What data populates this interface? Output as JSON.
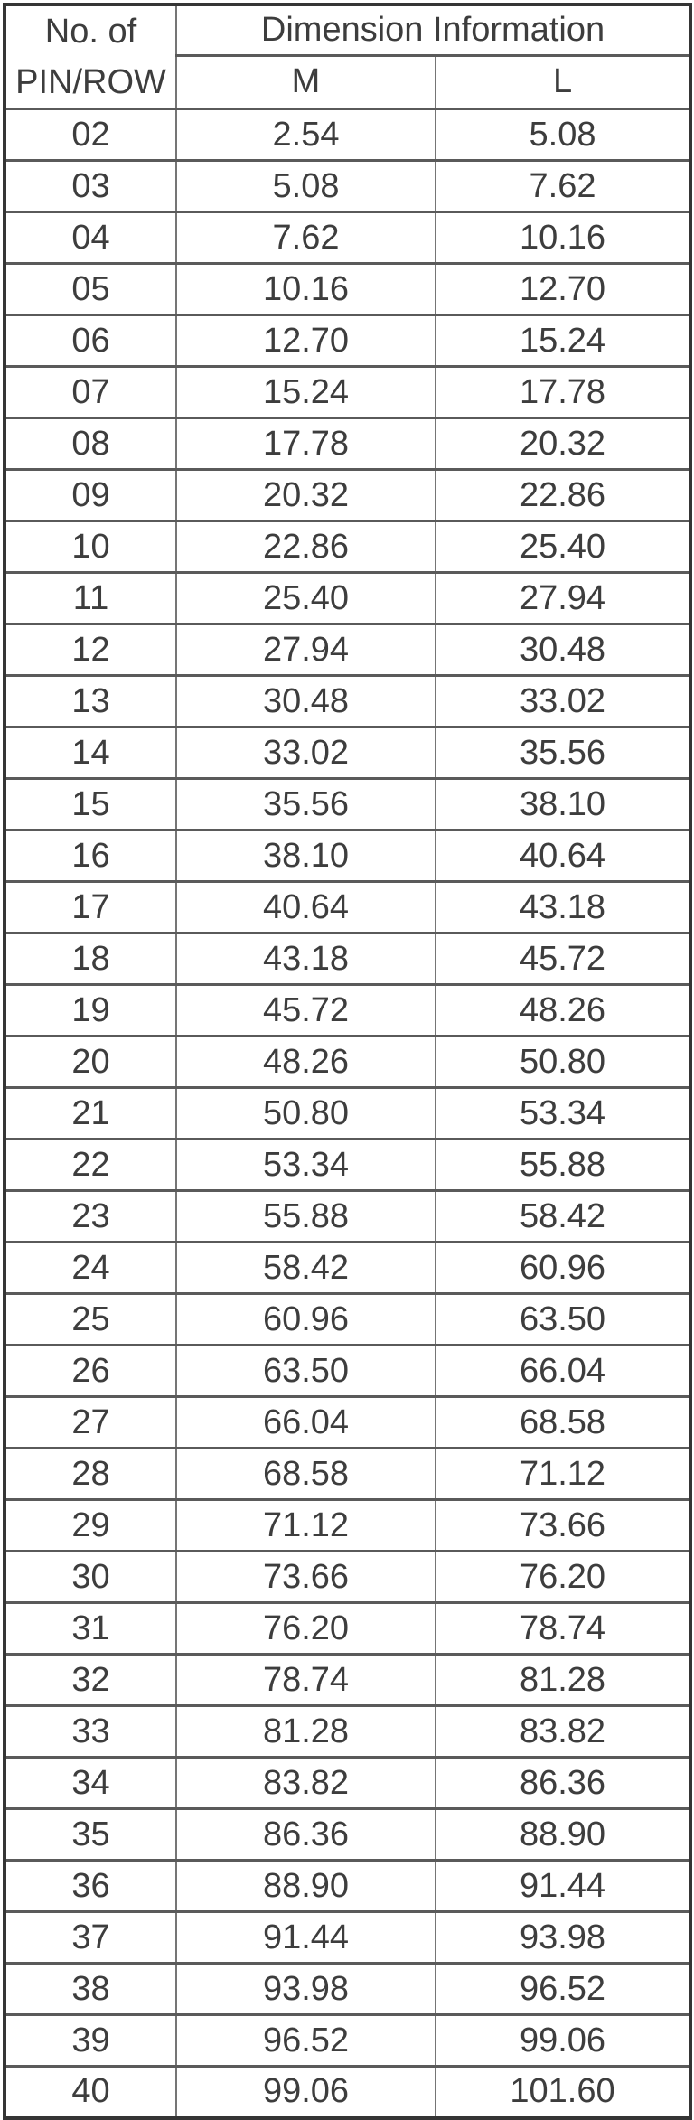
{
  "colors": {
    "text": "#3d3d3d",
    "border_outer": "#353535",
    "border_inner_horizontal": "#5a5a5a",
    "border_inner_vertical": "#757575",
    "background": "#ffffff"
  },
  "table": {
    "pin_header_line1": "No. of",
    "pin_header_line2": "PIN/ROW",
    "group_header": "Dimension Information",
    "columns": [
      "M",
      "L"
    ],
    "rows": [
      {
        "pin": "02",
        "m": "2.54",
        "l": "5.08"
      },
      {
        "pin": "03",
        "m": "5.08",
        "l": "7.62"
      },
      {
        "pin": "04",
        "m": "7.62",
        "l": "10.16"
      },
      {
        "pin": "05",
        "m": "10.16",
        "l": "12.70"
      },
      {
        "pin": "06",
        "m": "12.70",
        "l": "15.24"
      },
      {
        "pin": "07",
        "m": "15.24",
        "l": "17.78"
      },
      {
        "pin": "08",
        "m": "17.78",
        "l": "20.32"
      },
      {
        "pin": "09",
        "m": "20.32",
        "l": "22.86"
      },
      {
        "pin": "10",
        "m": "22.86",
        "l": "25.40"
      },
      {
        "pin": "11",
        "m": "25.40",
        "l": "27.94"
      },
      {
        "pin": "12",
        "m": "27.94",
        "l": "30.48"
      },
      {
        "pin": "13",
        "m": "30.48",
        "l": "33.02"
      },
      {
        "pin": "14",
        "m": "33.02",
        "l": "35.56"
      },
      {
        "pin": "15",
        "m": "35.56",
        "l": "38.10"
      },
      {
        "pin": "16",
        "m": "38.10",
        "l": "40.64"
      },
      {
        "pin": "17",
        "m": "40.64",
        "l": "43.18"
      },
      {
        "pin": "18",
        "m": "43.18",
        "l": "45.72"
      },
      {
        "pin": "19",
        "m": "45.72",
        "l": "48.26"
      },
      {
        "pin": "20",
        "m": "48.26",
        "l": "50.80"
      },
      {
        "pin": "21",
        "m": "50.80",
        "l": "53.34"
      },
      {
        "pin": "22",
        "m": "53.34",
        "l": "55.88"
      },
      {
        "pin": "23",
        "m": "55.88",
        "l": "58.42"
      },
      {
        "pin": "24",
        "m": "58.42",
        "l": "60.96"
      },
      {
        "pin": "25",
        "m": "60.96",
        "l": "63.50"
      },
      {
        "pin": "26",
        "m": "63.50",
        "l": "66.04"
      },
      {
        "pin": "27",
        "m": "66.04",
        "l": "68.58"
      },
      {
        "pin": "28",
        "m": "68.58",
        "l": "71.12"
      },
      {
        "pin": "29",
        "m": "71.12",
        "l": "73.66"
      },
      {
        "pin": "30",
        "m": "73.66",
        "l": "76.20"
      },
      {
        "pin": "31",
        "m": "76.20",
        "l": "78.74"
      },
      {
        "pin": "32",
        "m": "78.74",
        "l": "81.28"
      },
      {
        "pin": "33",
        "m": "81.28",
        "l": "83.82"
      },
      {
        "pin": "34",
        "m": "83.82",
        "l": "86.36"
      },
      {
        "pin": "35",
        "m": "86.36",
        "l": "88.90"
      },
      {
        "pin": "36",
        "m": "88.90",
        "l": "91.44"
      },
      {
        "pin": "37",
        "m": "91.44",
        "l": "93.98"
      },
      {
        "pin": "38",
        "m": "93.98",
        "l": "96.52"
      },
      {
        "pin": "39",
        "m": "96.52",
        "l": "99.06"
      },
      {
        "pin": "40",
        "m": "99.06",
        "l": "101.60"
      }
    ]
  }
}
